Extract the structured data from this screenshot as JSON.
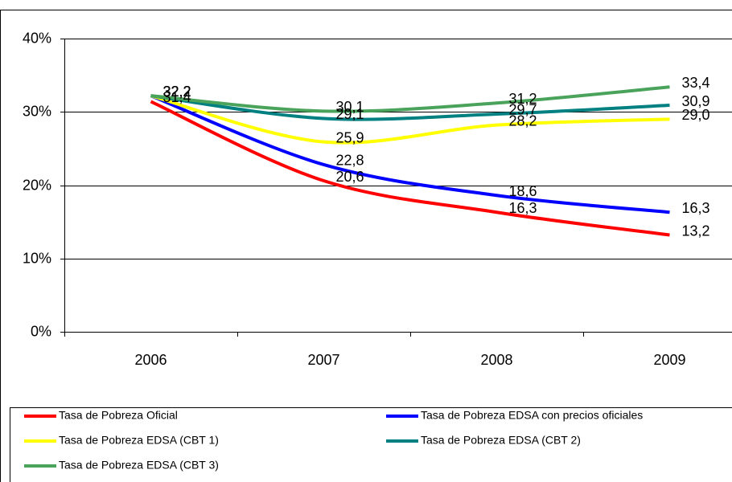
{
  "chart_data": {
    "type": "line",
    "categories": [
      "2006",
      "2007",
      "2008",
      "2009"
    ],
    "ylim": [
      0,
      40
    ],
    "yticks": [
      {
        "value": 0,
        "label": "0%"
      },
      {
        "value": 10,
        "label": "10%"
      },
      {
        "value": 20,
        "label": "20%"
      },
      {
        "value": 30,
        "label": "30%"
      },
      {
        "value": 40,
        "label": "40%"
      }
    ],
    "grid": true,
    "legend": "bottom",
    "series": [
      {
        "name": "Tasa de Pobreza Oficial",
        "color": "#ff0000",
        "values": [
          31.4,
          20.6,
          16.3,
          13.2
        ],
        "value_labels": [
          "31,4",
          "20,6",
          "16,3",
          "13,2"
        ]
      },
      {
        "name": "Tasa de Pobreza EDSA con precios oficiales",
        "color": "#0000ff",
        "values": [
          32.2,
          22.8,
          18.6,
          16.3
        ],
        "value_labels": [
          "32,2",
          "22,8",
          "18,6",
          "16,3"
        ]
      },
      {
        "name": "Tasa de Pobreza  EDSA (CBT 1)",
        "color": "#ffff00",
        "values": [
          32.2,
          25.9,
          28.2,
          29.0
        ],
        "value_labels": [
          "32,2",
          "25,9",
          "28,2",
          "29,0"
        ]
      },
      {
        "name": "Tasa de Pobreza  EDSA (CBT 2)",
        "color": "#008080",
        "values": [
          32.2,
          29.1,
          29.7,
          30.9
        ],
        "value_labels": [
          "32,2",
          "29,1",
          "29,7",
          "30,9"
        ]
      },
      {
        "name": "Tasa de Pobreza  EDSA (CBT 3)",
        "color": "#4aa35a",
        "values": [
          32.2,
          30.1,
          31.2,
          33.4
        ],
        "value_labels": [
          "32,2",
          "30,1",
          "31,2",
          "33,4"
        ]
      }
    ]
  }
}
